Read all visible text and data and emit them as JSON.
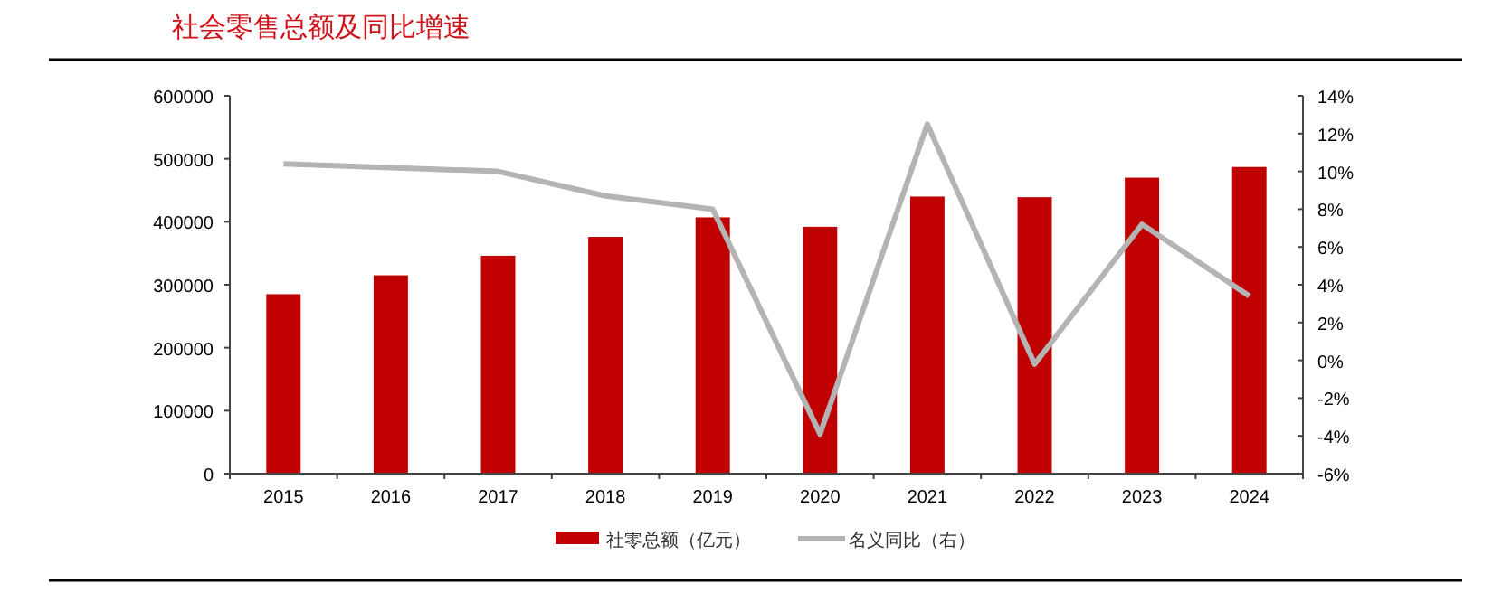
{
  "chart_data": {
    "type": "bar",
    "title": "社会零售总额及同比增速",
    "categories": [
      "2015",
      "2016",
      "2017",
      "2018",
      "2019",
      "2020",
      "2021",
      "2022",
      "2023",
      "2024"
    ],
    "series": [
      {
        "name": "社零总额（亿元）",
        "color": "#c00000",
        "values": [
          285000,
          315000,
          346000,
          376000,
          407000,
          392000,
          440000,
          439000,
          470000,
          487000
        ]
      },
      {
        "name": "名义同比（右）",
        "type": "line",
        "axis": "y2",
        "color": "#b4b4b4",
        "values": [
          10.4,
          10.2,
          10.0,
          8.7,
          8.0,
          -3.9,
          12.5,
          -0.2,
          7.2,
          3.4
        ]
      }
    ],
    "ylim": [
      0,
      600000
    ],
    "yticks": [
      0,
      100000,
      200000,
      300000,
      400000,
      500000,
      600000
    ],
    "y2lim": [
      -6,
      14
    ],
    "y2ticks": [
      {
        "value": -6,
        "label": "-6%"
      },
      {
        "value": -4,
        "label": "-4%"
      },
      {
        "value": -2,
        "label": "-2%"
      },
      {
        "value": 0,
        "label": "0%"
      },
      {
        "value": 2,
        "label": "2%"
      },
      {
        "value": 4,
        "label": "4%"
      },
      {
        "value": 6,
        "label": "6%"
      },
      {
        "value": 8,
        "label": "8%"
      },
      {
        "value": 10,
        "label": "10%"
      },
      {
        "value": 12,
        "label": "12%"
      },
      {
        "value": 14,
        "label": "14%"
      }
    ],
    "legend": "bottom",
    "marker": "none",
    "line_style": "solid",
    "grid": false
  }
}
